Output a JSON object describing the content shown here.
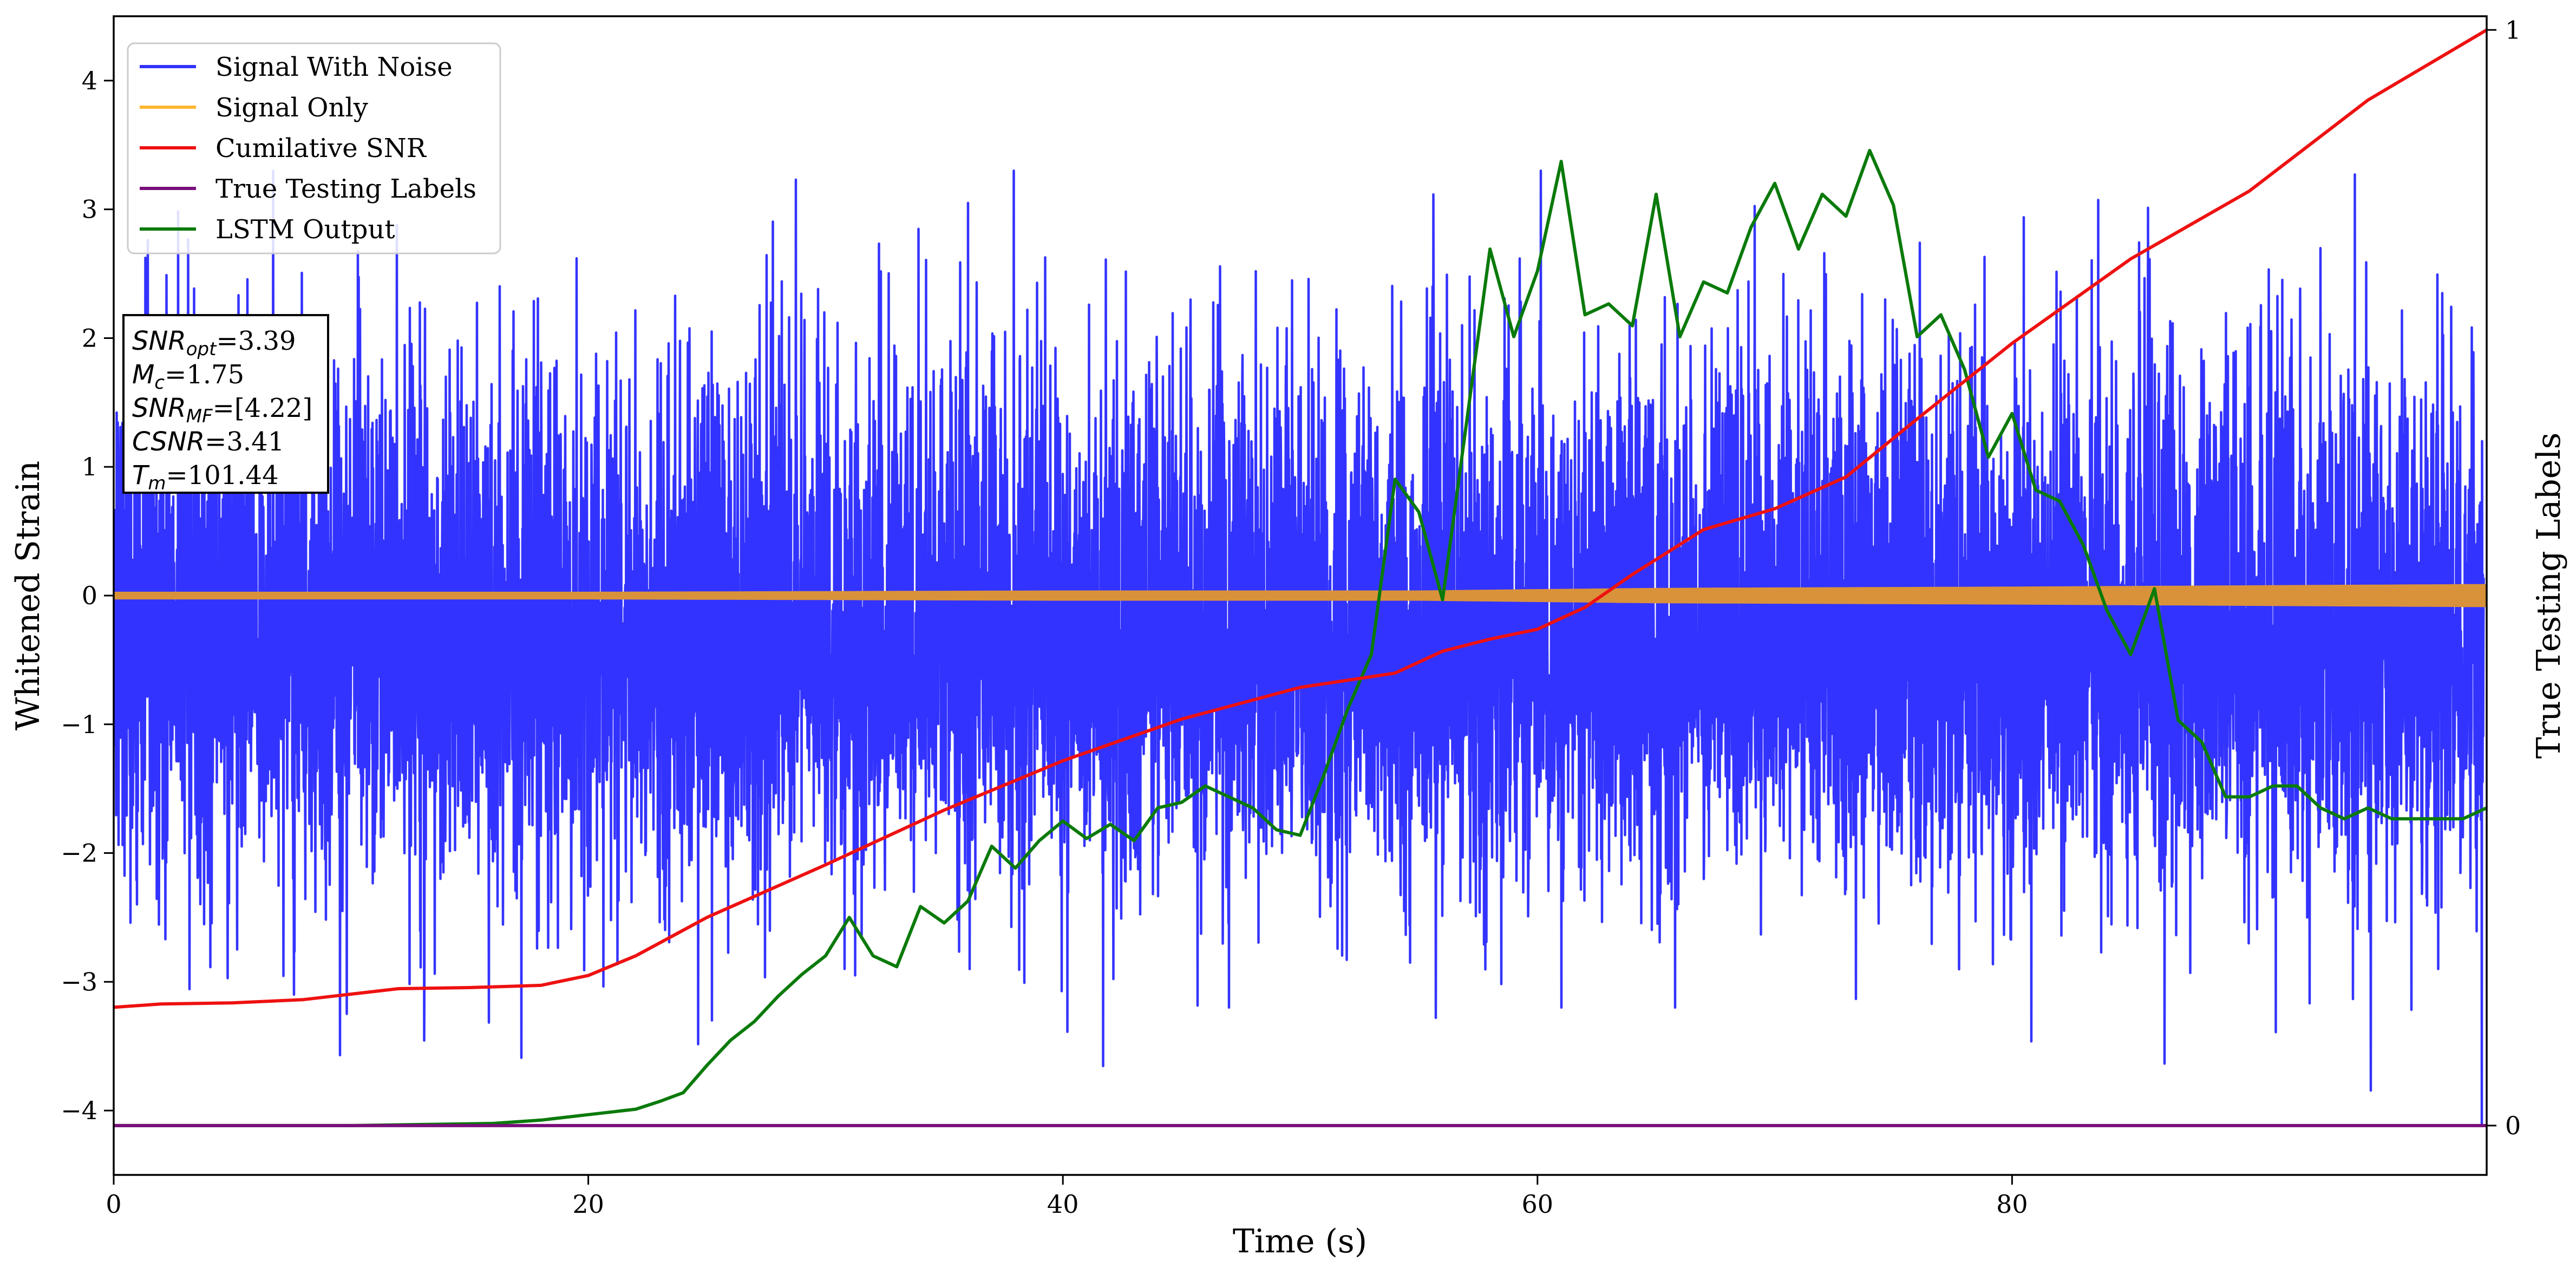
{
  "chart_data": {
    "type": "line",
    "xlabel": "Time (s)",
    "ylabel": "Whitened Strain",
    "y2label": "True Testing Labels",
    "xlim": [
      0,
      100
    ],
    "ylim": [
      -4.5,
      4.5
    ],
    "y2lim": [
      -0.045,
      1.0125
    ],
    "x_ticks": [
      0,
      20,
      40,
      60,
      80
    ],
    "y_ticks": [
      -4,
      -3,
      -2,
      -1,
      0,
      1,
      2,
      3,
      4
    ],
    "y2_ticks": [
      0,
      1
    ],
    "x_tick_labels": [
      "0",
      "20",
      "40",
      "60",
      "80"
    ],
    "y_tick_labels": [
      "−4",
      "−3",
      "−2",
      "−1",
      "0",
      "1",
      "2",
      "3",
      "4"
    ],
    "y2_tick_labels": [
      "0",
      "1"
    ],
    "legend_position": "top-left",
    "colors": {
      "signal_with_noise": "#3333ff",
      "signal_only": "#ffb732",
      "signal_only_band": "#d9923a",
      "cumulative_snr": "#ee1111",
      "true_labels": "#7a0e7a",
      "lstm_output": "#0a7a0a"
    },
    "series": [
      {
        "name": "Signal With Noise",
        "axis": "left",
        "description_type": "noise",
        "y_range_approx": [
          -4.1,
          3.3
        ],
        "spikes": [
          {
            "x": 25.2,
            "y": -3.3
          },
          {
            "x": 30.8,
            "y": -2.9
          },
          {
            "x": 36.0,
            "y": 3.05
          },
          {
            "x": 47.0,
            "y": 3.3
          },
          {
            "x": 47.0,
            "y": -3.2
          },
          {
            "x": 61.0,
            "y": -3.2
          },
          {
            "x": 65.8,
            "y": -3.2
          },
          {
            "x": 99.8,
            "y": -4.1
          }
        ]
      },
      {
        "name": "Signal Only",
        "axis": "left",
        "envelope": {
          "x": [
            0,
            20,
            40,
            55,
            65,
            80,
            90,
            100
          ],
          "amp": [
            0.02,
            0.02,
            0.03,
            0.03,
            0.05,
            0.06,
            0.07,
            0.08
          ]
        }
      },
      {
        "name": "Cumilative SNR",
        "axis": "right",
        "x": [
          0,
          2,
          5,
          8,
          10,
          12,
          15,
          18,
          20,
          22,
          25,
          30,
          35,
          40,
          45,
          50,
          54,
          56,
          58,
          60,
          62,
          64,
          67,
          70,
          73,
          76,
          80,
          85,
          90,
          95,
          100
        ],
        "y": [
          0.108,
          0.111,
          0.112,
          0.115,
          0.12,
          0.125,
          0.126,
          0.128,
          0.137,
          0.155,
          0.19,
          0.238,
          0.288,
          0.333,
          0.371,
          0.4,
          0.413,
          0.433,
          0.444,
          0.453,
          0.473,
          0.503,
          0.544,
          0.563,
          0.592,
          0.645,
          0.714,
          0.791,
          0.853,
          0.936,
          1.0
        ]
      },
      {
        "name": "True Testing Labels",
        "axis": "right",
        "x": [
          0,
          100
        ],
        "y": [
          0,
          0
        ]
      },
      {
        "name": "LSTM Output",
        "axis": "right",
        "x": [
          0,
          10,
          16,
          18,
          20,
          22,
          23,
          24,
          25,
          26,
          27,
          28,
          29,
          30,
          31,
          32,
          33,
          34,
          35,
          36,
          37,
          38,
          39,
          40,
          41,
          42,
          43,
          44,
          45,
          46,
          47,
          48,
          49,
          50,
          51,
          52,
          53,
          54,
          55,
          56,
          57,
          58,
          59,
          60,
          61,
          62,
          63,
          64,
          65,
          66,
          67,
          68,
          69,
          70,
          71,
          72,
          73,
          74,
          75,
          76,
          77,
          78,
          79,
          80,
          81,
          82,
          83,
          84,
          85,
          86,
          87,
          88,
          89,
          90,
          91,
          92,
          93,
          94,
          95,
          96,
          97,
          98,
          99,
          100
        ],
        "y": [
          0.0,
          0.0,
          0.002,
          0.005,
          0.01,
          0.015,
          0.022,
          0.03,
          0.055,
          0.078,
          0.095,
          0.118,
          0.138,
          0.155,
          0.19,
          0.155,
          0.145,
          0.2,
          0.185,
          0.205,
          0.255,
          0.235,
          0.26,
          0.278,
          0.262,
          0.275,
          0.26,
          0.29,
          0.295,
          0.31,
          0.3,
          0.29,
          0.27,
          0.265,
          0.32,
          0.38,
          0.43,
          0.59,
          0.56,
          0.48,
          0.64,
          0.8,
          0.72,
          0.78,
          0.88,
          0.74,
          0.75,
          0.73,
          0.85,
          0.72,
          0.77,
          0.76,
          0.82,
          0.86,
          0.8,
          0.85,
          0.83,
          0.89,
          0.84,
          0.72,
          0.74,
          0.69,
          0.61,
          0.65,
          0.58,
          0.57,
          0.53,
          0.47,
          0.43,
          0.49,
          0.37,
          0.35,
          0.3,
          0.3,
          0.31,
          0.31,
          0.29,
          0.28,
          0.29,
          0.28,
          0.28,
          0.28,
          0.28,
          0.29
        ]
      }
    ],
    "legend": [
      {
        "label": "Signal With Noise",
        "color": "#3333ff"
      },
      {
        "label": "Signal Only",
        "color": "#ffb732"
      },
      {
        "label": "Cumilative SNR",
        "color": "#ee1111"
      },
      {
        "label": "True Testing Labels",
        "color": "#7a0e7a"
      },
      {
        "label": "LSTM Output",
        "color": "#0a7a0a"
      }
    ],
    "annotation_box": [
      {
        "sym": "SNR",
        "sub": "opt",
        "value": "=3.39"
      },
      {
        "sym": "M",
        "sub": "c",
        "value": "=1.75"
      },
      {
        "sym": "SNR",
        "sub": "MF",
        "value": "=[4.22]"
      },
      {
        "sym": "CSNR",
        "sub": "",
        "value": "=3.41"
      },
      {
        "sym": "T",
        "sub": "m",
        "value": "=101.44"
      }
    ]
  }
}
